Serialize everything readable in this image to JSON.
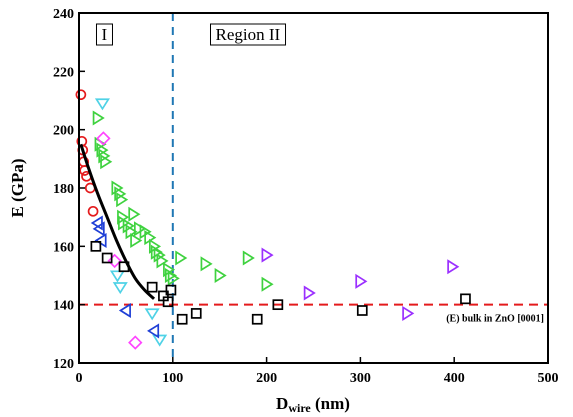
{
  "chart_data": {
    "type": "scatter",
    "xlabel": "Dwire (nm)",
    "xlabel_main": "D",
    "xlabel_sub": "wire",
    "xlabel_unit": " (nm)",
    "ylabel": "E (GPa)",
    "xlim": [
      0,
      500
    ],
    "ylim": [
      120,
      240
    ],
    "xticks": [
      0,
      100,
      200,
      300,
      400,
      500
    ],
    "yticks": [
      120,
      140,
      160,
      180,
      200,
      220,
      240
    ],
    "grid": false,
    "region_labels": [
      {
        "text": "I",
        "x": 27
      },
      {
        "text": "Region II",
        "x": 180
      }
    ],
    "vertical_line": {
      "x": 100,
      "color": "#1f77b4"
    },
    "reference_line": {
      "y": 140,
      "color": "#e41a1c",
      "label": "(E) bulk in ZnO [0001]"
    },
    "fit_curve": {
      "color": "#000000",
      "points": [
        [
          2,
          195
        ],
        [
          10,
          187
        ],
        [
          20,
          178
        ],
        [
          30,
          170
        ],
        [
          40,
          162
        ],
        [
          50,
          155
        ],
        [
          60,
          149
        ],
        [
          70,
          145
        ],
        [
          80,
          142
        ]
      ]
    },
    "series": [
      {
        "marker": "circle",
        "color": "#e41a1c",
        "x": [
          2,
          3,
          4,
          5,
          6,
          8,
          12,
          15
        ],
        "y": [
          212,
          196,
          193,
          189,
          186,
          184,
          180,
          172
        ]
      },
      {
        "marker": "triangle-down",
        "color": "#4fd2e6",
        "x": [
          25,
          41,
          44,
          78,
          86
        ],
        "y": [
          209,
          150,
          146,
          137,
          128
        ]
      },
      {
        "marker": "triangle-right",
        "color": "#3fd23f",
        "x": [
          20,
          22,
          24,
          26,
          28,
          40,
          43,
          45,
          46,
          47,
          52,
          55,
          58,
          60,
          64,
          70,
          75,
          80,
          82,
          85,
          88,
          95,
          97,
          100,
          108,
          135,
          150,
          180,
          200
        ],
        "y": [
          204,
          195,
          193,
          191,
          189,
          180,
          178,
          176,
          170,
          168,
          167,
          165,
          171,
          162,
          166,
          165,
          163,
          160,
          158,
          157,
          155,
          152,
          150,
          149,
          156,
          154,
          150,
          156,
          147
        ]
      },
      {
        "marker": "diamond",
        "color": "#ff44ff",
        "x": [
          26,
          38,
          60
        ],
        "y": [
          197,
          155,
          127
        ]
      },
      {
        "marker": "triangle-left",
        "color": "#1f3fd6",
        "x": [
          20,
          22,
          24,
          50,
          80
        ],
        "y": [
          168,
          166,
          162,
          138,
          131
        ]
      },
      {
        "marker": "square",
        "color": "#000000",
        "x": [
          18,
          30,
          48,
          78,
          90,
          95,
          98,
          110,
          125,
          190,
          212,
          302,
          412
        ],
        "y": [
          160,
          156,
          153,
          146,
          143,
          141,
          145,
          135,
          137,
          135,
          140,
          138,
          142
        ]
      },
      {
        "marker": "triangle-right",
        "color": "#9b30ff",
        "x": [
          200,
          245,
          300,
          350,
          398
        ],
        "y": [
          157,
          144,
          148,
          137,
          153
        ]
      }
    ]
  }
}
